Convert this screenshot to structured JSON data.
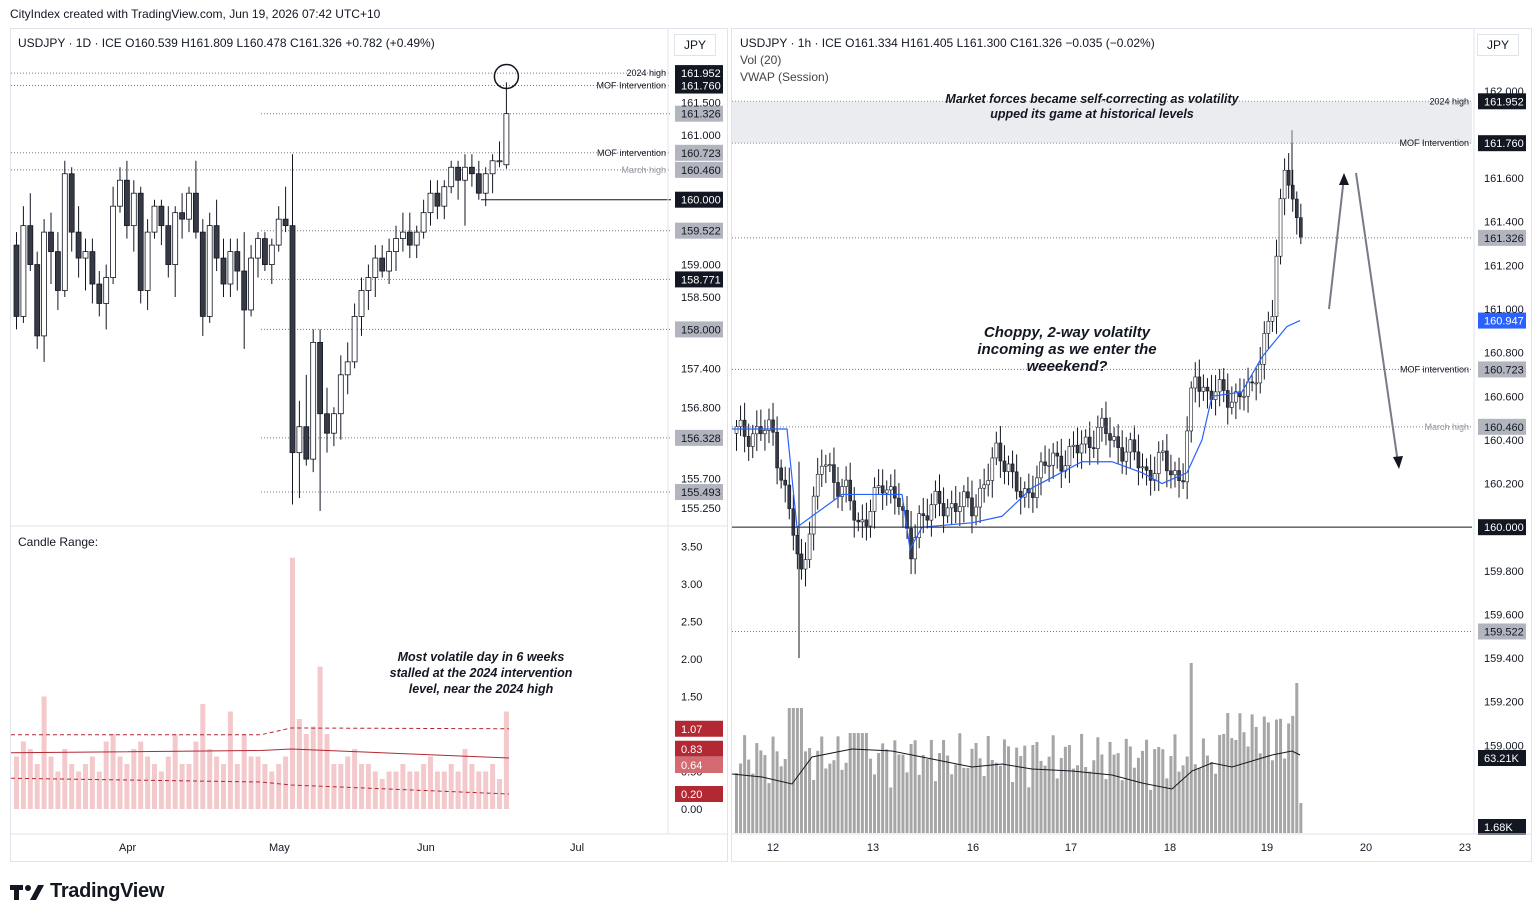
{
  "header": {
    "text": "CityIndex created with TradingView.com, Jun 19, 2026 07:42 UTC+10"
  },
  "footer": {
    "brand": "TradingView"
  },
  "colors": {
    "up": "#ffffff",
    "down": "#363a45",
    "vwap": "#2962ff",
    "range_bar": "#f3c9cc",
    "range_line": "#b22833",
    "volume": "#a6a6a6",
    "volume_ma": "#131722"
  },
  "left": {
    "legend": "USDJPY · 1D · ICE   O160.539  H161.809  L160.478  C161.326  +0.782 (+0.49%)",
    "currency": "JPY",
    "sub_title": "Candle Range:",
    "annotation": [
      "Most volatile day in 6 weeks",
      "stalled at the 2024 intervention",
      "level, near the 2024 high"
    ],
    "x_labels": [
      "Apr",
      "May",
      "Jun",
      "Jul"
    ],
    "price_ticks": [
      "161.500",
      "161.000",
      "159.000",
      "158.500",
      "157.400",
      "156.800",
      "155.700",
      "155.250"
    ],
    "level_labels": [
      {
        "text": "2024 high",
        "value": "161.952",
        "style": "black"
      },
      {
        "text": "MOF Intervention",
        "value": "161.760",
        "style": "black"
      },
      {
        "text": "",
        "value": "161.326",
        "style": "gray"
      },
      {
        "text": "MOF intervention",
        "value": "160.723",
        "style": "gray"
      },
      {
        "text": "March high",
        "value": "160.460",
        "style": "gray"
      },
      {
        "text": "",
        "value": "160.000",
        "style": "black"
      },
      {
        "text": "",
        "value": "159.522",
        "style": "gray"
      },
      {
        "text": "",
        "value": "158.771",
        "style": "black"
      },
      {
        "text": "",
        "value": "158.000",
        "style": "gray"
      },
      {
        "text": "",
        "value": "156.328",
        "style": "gray"
      },
      {
        "text": "",
        "value": "155.493",
        "style": "gray"
      }
    ],
    "range_ticks": [
      "3.50",
      "3.00",
      "2.50",
      "2.00",
      "1.50",
      "0.50",
      "0.00"
    ],
    "range_badges": [
      "1.07",
      "0.83",
      "0.64",
      "0.20"
    ]
  },
  "right": {
    "legend": "USDJPY · 1h · ICE   O161.334  H161.405  L161.300  C161.326  −0.035 (−0.02%)",
    "legend2": "Vol (20)",
    "legend3": "VWAP (Session)",
    "currency": "JPY",
    "box_note": [
      "Market forces became self-correcting as volatility",
      "upped its game at historical levels"
    ],
    "annotation": [
      "Choppy, 2-way volatilty",
      "incoming as we enter the",
      "weeekend?"
    ],
    "x_labels": [
      "12",
      "13",
      "16",
      "17",
      "18",
      "19",
      "20",
      "23"
    ],
    "price_ticks": [
      "162.000",
      "161.600",
      "161.400",
      "161.200",
      "161.000",
      "160.800",
      "160.600",
      "160.400",
      "160.200",
      "159.800",
      "159.600",
      "159.400",
      "159.200",
      "159.000"
    ],
    "level_labels": [
      {
        "text": "2024 high",
        "value": "161.952",
        "style": "black"
      },
      {
        "text": "MOF Intervention",
        "value": "161.760",
        "style": "black"
      },
      {
        "text": "",
        "value": "161.326",
        "style": "gray"
      },
      {
        "text": "",
        "value": "160.947",
        "style": "blue"
      },
      {
        "text": "MOF intervention",
        "value": "160.723",
        "style": "gray"
      },
      {
        "text": "March high",
        "value": "160.460",
        "style": "gray"
      },
      {
        "text": "",
        "value": "160.000",
        "style": "black"
      },
      {
        "text": "",
        "value": "159.522",
        "style": "gray"
      }
    ],
    "volume_badges": [
      "63.21K",
      "1.68K"
    ]
  },
  "chart_data": [
    {
      "type": "candlestick",
      "title": "USDJPY · 1D · ICE",
      "x_axis": [
        "Apr",
        "May",
        "Jun",
        "Jul"
      ],
      "ylim": [
        155.0,
        162.2
      ],
      "levels": {
        "2024 high": 161.952,
        "MOF Intervention": 161.76,
        "MOF intervention": 160.723,
        "March high": 160.46
      },
      "last_candle": {
        "open": 160.539,
        "high": 161.809,
        "low": 160.478,
        "close": 161.326
      },
      "ohlc": [
        [
          159.3,
          159.5,
          158.0,
          158.2
        ],
        [
          158.2,
          159.9,
          158.1,
          159.6
        ],
        [
          159.6,
          160.1,
          158.9,
          159.0
        ],
        [
          159.0,
          159.2,
          157.7,
          157.9
        ],
        [
          157.9,
          159.7,
          157.5,
          159.5
        ],
        [
          159.5,
          159.8,
          158.7,
          159.2
        ],
        [
          159.2,
          159.5,
          158.3,
          158.6
        ],
        [
          158.6,
          160.6,
          158.5,
          160.4
        ],
        [
          160.4,
          160.5,
          159.2,
          159.5
        ],
        [
          159.5,
          159.9,
          158.8,
          159.1
        ],
        [
          159.1,
          159.4,
          158.6,
          159.2
        ],
        [
          159.2,
          159.4,
          158.4,
          158.7
        ],
        [
          158.7,
          158.9,
          158.2,
          158.4
        ],
        [
          158.4,
          159.0,
          158.0,
          158.8
        ],
        [
          158.8,
          160.2,
          158.7,
          159.9
        ],
        [
          159.9,
          160.5,
          159.8,
          160.3
        ],
        [
          160.3,
          160.6,
          159.4,
          159.6
        ],
        [
          159.6,
          160.3,
          159.2,
          160.1
        ],
        [
          160.1,
          160.2,
          158.4,
          158.6
        ],
        [
          158.6,
          159.7,
          158.3,
          159.5
        ],
        [
          159.5,
          160.0,
          159.4,
          159.9
        ],
        [
          159.9,
          160.0,
          159.3,
          159.6
        ],
        [
          159.6,
          159.9,
          158.8,
          159.0
        ],
        [
          159.0,
          159.9,
          158.5,
          159.8
        ],
        [
          159.8,
          160.1,
          159.4,
          159.7
        ],
        [
          159.7,
          160.2,
          159.5,
          160.1
        ],
        [
          160.1,
          160.6,
          159.4,
          159.5
        ],
        [
          159.5,
          159.7,
          157.9,
          158.2
        ],
        [
          158.2,
          159.8,
          158.1,
          159.6
        ],
        [
          159.6,
          160.0,
          158.9,
          159.1
        ],
        [
          159.1,
          159.4,
          158.5,
          158.7
        ],
        [
          158.7,
          159.4,
          158.5,
          159.2
        ],
        [
          159.2,
          159.4,
          158.6,
          158.9
        ],
        [
          158.9,
          159.5,
          157.7,
          158.3
        ],
        [
          158.3,
          159.3,
          158.2,
          159.1
        ],
        [
          159.1,
          159.5,
          158.8,
          159.4
        ],
        [
          159.4,
          159.5,
          158.9,
          159.0
        ],
        [
          159.0,
          159.4,
          158.7,
          159.3
        ],
        [
          159.3,
          159.9,
          159.2,
          159.7
        ],
        [
          159.7,
          160.2,
          159.5,
          159.6
        ],
        [
          159.6,
          160.7,
          155.3,
          156.1
        ],
        [
          156.1,
          156.9,
          155.4,
          156.5
        ],
        [
          156.5,
          157.3,
          155.9,
          156.0
        ],
        [
          156.0,
          158.0,
          155.8,
          157.8
        ],
        [
          157.8,
          158.0,
          155.2,
          156.7
        ],
        [
          156.7,
          157.1,
          156.1,
          156.4
        ],
        [
          156.4,
          156.8,
          156.2,
          156.7
        ],
        [
          156.7,
          157.6,
          156.3,
          157.3
        ],
        [
          157.3,
          157.8,
          157.0,
          157.5
        ],
        [
          157.5,
          158.4,
          157.4,
          158.2
        ],
        [
          158.2,
          158.8,
          157.9,
          158.6
        ],
        [
          158.6,
          159.0,
          158.3,
          158.8
        ],
        [
          158.8,
          159.3,
          158.5,
          159.1
        ],
        [
          159.1,
          159.3,
          158.8,
          158.9
        ],
        [
          158.9,
          159.4,
          158.7,
          159.2
        ],
        [
          159.2,
          159.6,
          158.9,
          159.4
        ],
        [
          159.4,
          159.8,
          159.2,
          159.5
        ],
        [
          159.5,
          159.8,
          159.1,
          159.3
        ],
        [
          159.3,
          159.6,
          159.1,
          159.5
        ],
        [
          159.5,
          160.0,
          159.4,
          159.8
        ],
        [
          159.8,
          160.3,
          159.6,
          160.1
        ],
        [
          160.1,
          160.3,
          159.7,
          159.9
        ],
        [
          159.9,
          160.3,
          159.7,
          160.2
        ],
        [
          160.2,
          160.6,
          160.1,
          160.5
        ],
        [
          160.5,
          160.6,
          160.0,
          160.3
        ],
        [
          160.3,
          160.7,
          159.6,
          160.5
        ],
        [
          160.5,
          160.7,
          160.2,
          160.4
        ],
        [
          160.4,
          160.6,
          160.0,
          160.1
        ],
        [
          160.1,
          160.5,
          159.9,
          160.4
        ],
        [
          160.4,
          160.7,
          160.1,
          160.6
        ],
        [
          160.6,
          160.9,
          160.5,
          160.6
        ],
        [
          160.539,
          161.809,
          160.478,
          161.326
        ]
      ]
    },
    {
      "type": "bar",
      "title": "Candle Range:",
      "ylim": [
        0,
        3.6
      ],
      "reference_lines": {
        "upper": 1.07,
        "mean": 0.83,
        "value_line": 0.64,
        "lower": 0.2
      },
      "values": [
        0.7,
        0.9,
        0.8,
        0.6,
        1.5,
        0.7,
        0.5,
        0.8,
        0.6,
        0.5,
        0.6,
        0.7,
        0.5,
        0.9,
        1.0,
        0.7,
        0.6,
        0.8,
        0.9,
        0.7,
        0.6,
        0.5,
        0.7,
        1.0,
        0.6,
        0.6,
        0.9,
        1.4,
        0.8,
        0.7,
        0.6,
        1.3,
        0.6,
        1.0,
        0.7,
        0.7,
        0.6,
        0.5,
        0.6,
        0.7,
        3.35,
        1.2,
        1.0,
        1.1,
        1.9,
        1.0,
        0.6,
        0.6,
        0.7,
        0.8,
        0.6,
        0.6,
        0.5,
        0.4,
        0.5,
        0.5,
        0.6,
        0.5,
        0.5,
        0.6,
        0.7,
        0.5,
        0.5,
        0.6,
        0.5,
        0.8,
        0.6,
        0.5,
        0.5,
        0.6,
        0.4,
        1.3
      ]
    },
    {
      "type": "candlestick",
      "title": "USDJPY · 1h · ICE",
      "x_axis": [
        "12",
        "13",
        "16",
        "17",
        "18",
        "19",
        "20",
        "23"
      ],
      "ylim": [
        158.8,
        162.1
      ],
      "series": [
        {
          "name": "VWAP (Session)",
          "last": 160.947
        },
        {
          "name": "Vol (20)",
          "last": "63.21K"
        }
      ],
      "levels": {
        "2024 high": 161.952,
        "MOF Intervention": 161.76,
        "MOF intervention": 160.723,
        "March high": 160.46,
        "160.000": 160.0,
        "159.522": 159.522
      },
      "last_candle": {
        "open": 161.334,
        "high": 161.405,
        "low": 161.3,
        "close": 161.326
      }
    }
  ]
}
